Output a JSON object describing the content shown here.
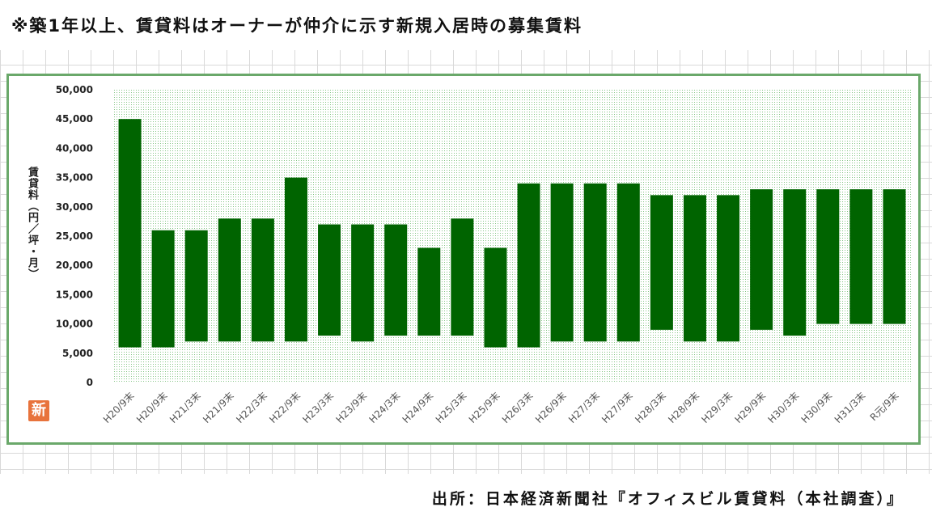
{
  "header": {
    "note": "※築1年以上、賃貸料はオーナーが仲介に示す新規入居時の募集賃料"
  },
  "footer": {
    "source": "出所：日本経済新聞社『オフィスビル賃貸料（本社調査）』"
  },
  "logo": {
    "text": "新"
  },
  "colors": {
    "bar": "#006400",
    "frame": "#6aa86a",
    "dots": "#86c586"
  },
  "chart_data": {
    "type": "bar",
    "subtype": "floating-range",
    "title": "",
    "xlabel": "",
    "ylabel": "賃貸料（円／坪・月）",
    "ylim": [
      0,
      50000
    ],
    "yticks": [
      0,
      5000,
      10000,
      15000,
      20000,
      25000,
      30000,
      35000,
      40000,
      45000,
      50000
    ],
    "ytick_labels": [
      "0",
      "5,000",
      "10,000",
      "15,000",
      "20,000",
      "25,000",
      "30,000",
      "35,000",
      "40,000",
      "45,000",
      "50,000"
    ],
    "grid": false,
    "legend": "none",
    "categories": [
      "H20/9末",
      "H20/9末",
      "H21/3末",
      "H21/9末",
      "H22/3末",
      "H22/9末",
      "H23/3末",
      "H23/9末",
      "H24/3末",
      "H24/9末",
      "H25/3末",
      "H25/9末",
      "H26/3末",
      "H26/9末",
      "H27/3末",
      "H27/9末",
      "H28/3末",
      "H28/9末",
      "H29/3末",
      "H29/9末",
      "H30/3末",
      "H30/9末",
      "H31/3末",
      "R元/9末"
    ],
    "series": [
      {
        "role": "low",
        "values": [
          6000,
          6000,
          7000,
          7000,
          7000,
          7000,
          8000,
          7000,
          8000,
          8000,
          8000,
          6000,
          6000,
          7000,
          7000,
          7000,
          9000,
          7000,
          7000,
          9000,
          8000,
          10000,
          10000,
          10000
        ]
      },
      {
        "role": "high",
        "values": [
          45000,
          26000,
          26000,
          28000,
          28000,
          35000,
          27000,
          27000,
          27000,
          23000,
          28000,
          23000,
          34000,
          34000,
          34000,
          34000,
          32000,
          32000,
          32000,
          33000,
          33000,
          33000,
          33000,
          33000
        ]
      }
    ]
  }
}
